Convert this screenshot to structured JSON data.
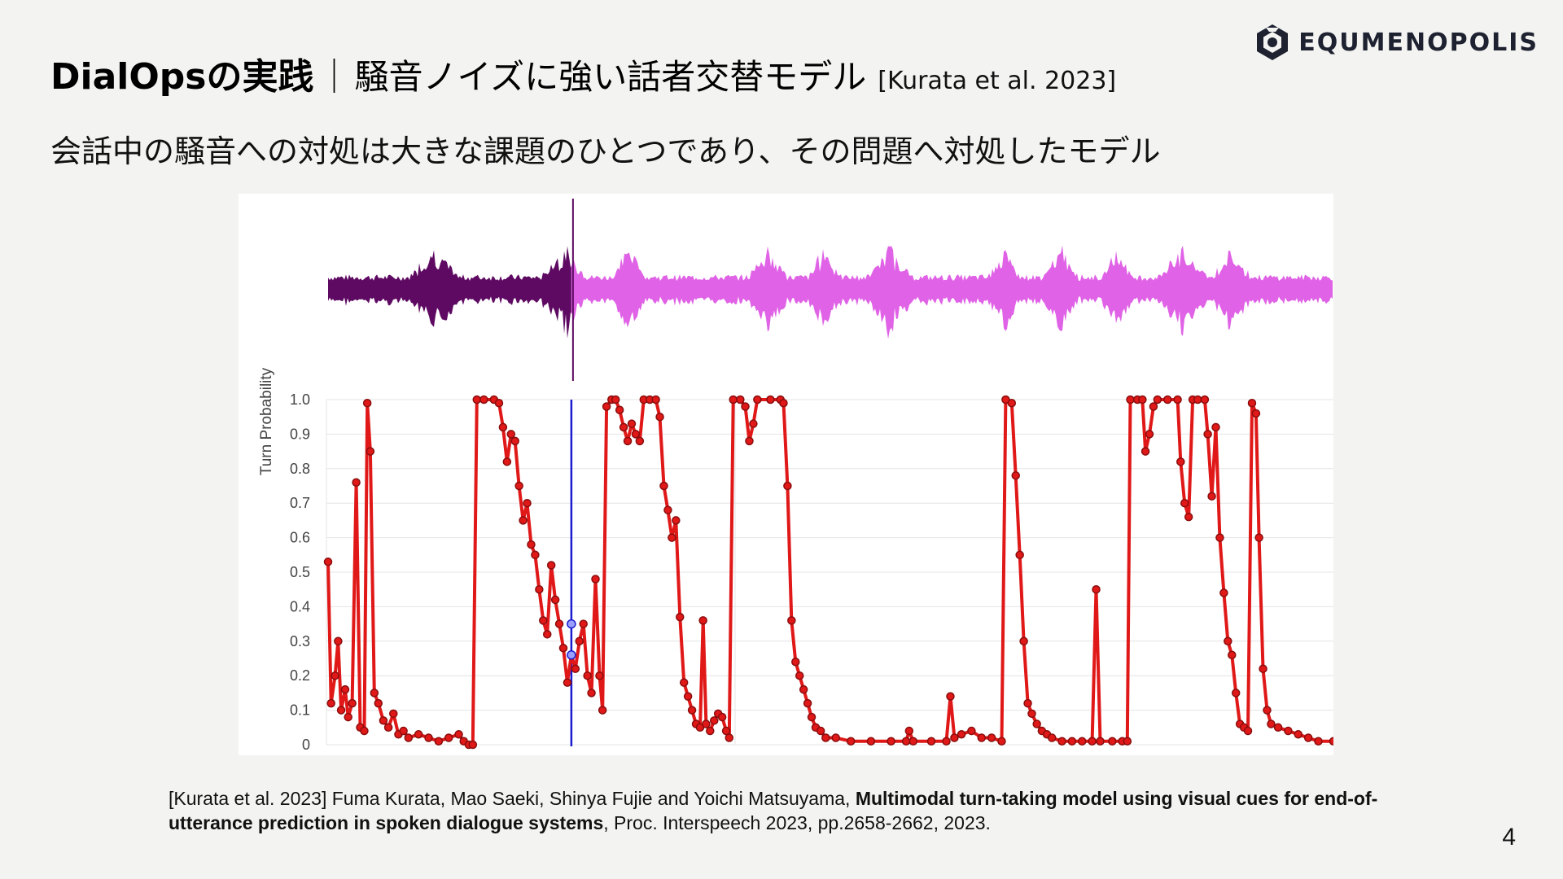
{
  "brand": {
    "name": "EQUMENOPOLIS",
    "icon": "hexagon-logo-icon"
  },
  "title": {
    "main": "DialOpsの実践",
    "separator": "｜",
    "sub": "騒音ノイズに強い話者交替モデル",
    "ref": "[Kurata et al. 2023]"
  },
  "subtitle": "会話中の騒音への対処は大きな課題のひとつであり、その問題へ対処したモデル",
  "reference": {
    "prefix": "[Kurata et al. 2023] Fuma Kurata, Mao Saeki, Shinya Fujie and Yoichi Matsuyama, ",
    "paper_title": "Multimodal turn-taking model using visual cues for end-of-utterance prediction in spoken dialogue systems",
    "suffix": ", Proc. Interspeech 2023, pp.2658-2662, 2023."
  },
  "page_number": "4",
  "colors": {
    "waveform_past": "#5e0a62",
    "waveform_future": "#e062e6",
    "line": "#e01818",
    "marker_edge": "#8a0d0d",
    "cursor": "#1b1bd0"
  },
  "chart_data": {
    "type": "line",
    "title": "",
    "xlabel": "",
    "ylabel": "Turn Probability",
    "ylim": [
      0,
      1
    ],
    "yticks": [
      "1.0",
      "0.9",
      "0.8",
      "0.7",
      "0.6",
      "0.5",
      "0.4",
      "0.3",
      "0.2",
      "0.1",
      "0"
    ],
    "grid": true,
    "xlim": [
      0,
      100
    ],
    "cursor_x": 24.2,
    "waveform_split_x": 24.2,
    "series": [
      {
        "points": [
          [
            0,
            0.53
          ],
          [
            0.3,
            0.12
          ],
          [
            0.7,
            0.2
          ],
          [
            1.0,
            0.3
          ],
          [
            1.3,
            0.1
          ],
          [
            1.7,
            0.16
          ],
          [
            2.0,
            0.08
          ],
          [
            2.4,
            0.12
          ],
          [
            2.8,
            0.76
          ],
          [
            3.2,
            0.05
          ],
          [
            3.6,
            0.04
          ],
          [
            3.9,
            0.99
          ],
          [
            4.2,
            0.85
          ],
          [
            4.6,
            0.15
          ],
          [
            5.0,
            0.12
          ],
          [
            5.5,
            0.07
          ],
          [
            6.0,
            0.05
          ],
          [
            6.5,
            0.09
          ],
          [
            7.0,
            0.03
          ],
          [
            7.5,
            0.04
          ],
          [
            8.0,
            0.02
          ],
          [
            9.0,
            0.03
          ],
          [
            10.0,
            0.02
          ],
          [
            11.0,
            0.01
          ],
          [
            12.0,
            0.02
          ],
          [
            13.0,
            0.03
          ],
          [
            13.5,
            0.01
          ],
          [
            14.0,
            0.0
          ],
          [
            14.4,
            0.0
          ],
          [
            14.8,
            1.0
          ],
          [
            15.5,
            1.0
          ],
          [
            16.5,
            1.0
          ],
          [
            17.0,
            0.99
          ],
          [
            17.4,
            0.92
          ],
          [
            17.8,
            0.82
          ],
          [
            18.2,
            0.9
          ],
          [
            18.6,
            0.88
          ],
          [
            19.0,
            0.75
          ],
          [
            19.4,
            0.65
          ],
          [
            19.8,
            0.7
          ],
          [
            20.2,
            0.58
          ],
          [
            20.6,
            0.55
          ],
          [
            21.0,
            0.45
          ],
          [
            21.4,
            0.36
          ],
          [
            21.8,
            0.32
          ],
          [
            22.2,
            0.52
          ],
          [
            22.6,
            0.42
          ],
          [
            23.0,
            0.35
          ],
          [
            23.4,
            0.28
          ],
          [
            23.8,
            0.18
          ],
          [
            24.2,
            0.26
          ],
          [
            24.6,
            0.22
          ],
          [
            25.0,
            0.3
          ],
          [
            25.4,
            0.35
          ],
          [
            25.8,
            0.2
          ],
          [
            26.2,
            0.15
          ],
          [
            26.6,
            0.48
          ],
          [
            27.0,
            0.2
          ],
          [
            27.3,
            0.1
          ],
          [
            27.7,
            0.98
          ],
          [
            28.2,
            1.0
          ],
          [
            28.6,
            1.0
          ],
          [
            29.0,
            0.97
          ],
          [
            29.4,
            0.92
          ],
          [
            29.8,
            0.88
          ],
          [
            30.2,
            0.93
          ],
          [
            30.6,
            0.9
          ],
          [
            31.0,
            0.88
          ],
          [
            31.4,
            1.0
          ],
          [
            32.0,
            1.0
          ],
          [
            32.6,
            1.0
          ],
          [
            33.0,
            0.95
          ],
          [
            33.4,
            0.75
          ],
          [
            33.8,
            0.68
          ],
          [
            34.2,
            0.6
          ],
          [
            34.6,
            0.65
          ],
          [
            35.0,
            0.37
          ],
          [
            35.4,
            0.18
          ],
          [
            35.8,
            0.14
          ],
          [
            36.2,
            0.1
          ],
          [
            36.6,
            0.06
          ],
          [
            37.0,
            0.05
          ],
          [
            37.3,
            0.36
          ],
          [
            37.6,
            0.06
          ],
          [
            38.0,
            0.04
          ],
          [
            38.4,
            0.07
          ],
          [
            38.8,
            0.09
          ],
          [
            39.2,
            0.08
          ],
          [
            39.6,
            0.04
          ],
          [
            39.9,
            0.02
          ],
          [
            40.3,
            1.0
          ],
          [
            41.0,
            1.0
          ],
          [
            41.5,
            0.98
          ],
          [
            41.9,
            0.88
          ],
          [
            42.3,
            0.93
          ],
          [
            42.7,
            1.0
          ],
          [
            44.0,
            1.0
          ],
          [
            45.0,
            1.0
          ],
          [
            45.3,
            0.99
          ],
          [
            45.7,
            0.75
          ],
          [
            46.1,
            0.36
          ],
          [
            46.5,
            0.24
          ],
          [
            46.9,
            0.2
          ],
          [
            47.3,
            0.16
          ],
          [
            47.7,
            0.12
          ],
          [
            48.1,
            0.08
          ],
          [
            48.5,
            0.05
          ],
          [
            49.0,
            0.04
          ],
          [
            49.5,
            0.02
          ],
          [
            50.5,
            0.02
          ],
          [
            52.0,
            0.01
          ],
          [
            54.0,
            0.01
          ],
          [
            56.0,
            0.01
          ],
          [
            57.5,
            0.01
          ],
          [
            57.8,
            0.04
          ],
          [
            58.2,
            0.01
          ],
          [
            60.0,
            0.01
          ],
          [
            61.5,
            0.01
          ],
          [
            61.9,
            0.14
          ],
          [
            62.3,
            0.02
          ],
          [
            63.0,
            0.03
          ],
          [
            64.0,
            0.04
          ],
          [
            65.0,
            0.02
          ],
          [
            66.0,
            0.02
          ],
          [
            67.0,
            0.01
          ],
          [
            67.4,
            1.0
          ],
          [
            68.0,
            0.99
          ],
          [
            68.4,
            0.78
          ],
          [
            68.8,
            0.55
          ],
          [
            69.2,
            0.3
          ],
          [
            69.6,
            0.12
          ],
          [
            70.0,
            0.09
          ],
          [
            70.5,
            0.06
          ],
          [
            71.0,
            0.04
          ],
          [
            71.5,
            0.03
          ],
          [
            72.0,
            0.02
          ],
          [
            73.0,
            0.01
          ],
          [
            74.0,
            0.01
          ],
          [
            75.0,
            0.01
          ],
          [
            76.0,
            0.01
          ],
          [
            76.4,
            0.45
          ],
          [
            76.8,
            0.01
          ],
          [
            78.0,
            0.01
          ],
          [
            79.0,
            0.01
          ],
          [
            79.5,
            0.01
          ],
          [
            79.8,
            1.0
          ],
          [
            80.5,
            1.0
          ],
          [
            81.0,
            1.0
          ],
          [
            81.3,
            0.85
          ],
          [
            81.7,
            0.9
          ],
          [
            82.1,
            0.98
          ],
          [
            82.5,
            1.0
          ],
          [
            83.5,
            1.0
          ],
          [
            84.5,
            1.0
          ],
          [
            84.8,
            0.82
          ],
          [
            85.2,
            0.7
          ],
          [
            85.6,
            0.66
          ],
          [
            86.0,
            1.0
          ],
          [
            86.5,
            1.0
          ],
          [
            87.2,
            1.0
          ],
          [
            87.5,
            0.9
          ],
          [
            87.9,
            0.72
          ],
          [
            88.3,
            0.92
          ],
          [
            88.7,
            0.6
          ],
          [
            89.1,
            0.44
          ],
          [
            89.5,
            0.3
          ],
          [
            89.9,
            0.26
          ],
          [
            90.3,
            0.15
          ],
          [
            90.7,
            0.06
          ],
          [
            91.1,
            0.05
          ],
          [
            91.5,
            0.04
          ],
          [
            91.9,
            0.99
          ],
          [
            92.3,
            0.96
          ],
          [
            92.6,
            0.6
          ],
          [
            93.0,
            0.22
          ],
          [
            93.4,
            0.1
          ],
          [
            93.8,
            0.06
          ],
          [
            94.5,
            0.05
          ],
          [
            95.5,
            0.04
          ],
          [
            96.5,
            0.03
          ],
          [
            97.5,
            0.02
          ],
          [
            98.5,
            0.01
          ],
          [
            100,
            0.01
          ]
        ]
      }
    ],
    "highlight_points": [
      [
        24.2,
        0.35
      ],
      [
        24.2,
        0.26
      ]
    ]
  }
}
